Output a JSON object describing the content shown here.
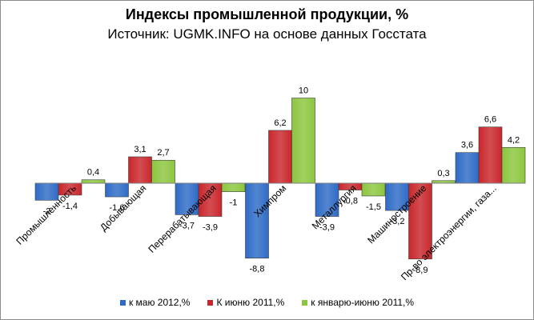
{
  "chart_data": {
    "type": "bar",
    "title": "Индексы промышленной продукции, %",
    "subtitle": "Источник: UGMK.INFO на основе данных Госстата",
    "categories": [
      "Промышленность",
      "Добывающая",
      "Перерабатывающая",
      "Химпром",
      "Металлургия",
      "Машиностроение",
      "Пр-во электроэнергии, газа..."
    ],
    "series": [
      {
        "name": "к маю 2012,%",
        "color": "#2e6bc6",
        "values": [
          -2,
          -1.6,
          -3.7,
          -8.8,
          -3.9,
          -3.2,
          3.6
        ],
        "labels": [
          "-2",
          "-1,6",
          "-3,7",
          "-8,8",
          "-3,9",
          "-3,2",
          "3,6"
        ]
      },
      {
        "name": "К июню 2011,%",
        "color": "#c9262b",
        "values": [
          -1.4,
          3.1,
          -3.9,
          6.2,
          -0.8,
          -8.9,
          6.6
        ],
        "labels": [
          "-1,4",
          "3,1",
          "-3,9",
          "6,2",
          "-0,8",
          "-8,9",
          "6,6"
        ]
      },
      {
        "name": "к январю-июню 2011,%",
        "color": "#8cc63e",
        "values": [
          0.4,
          2.7,
          -1,
          10,
          -1.5,
          0.3,
          4.2
        ],
        "labels": [
          "0,4",
          "2,7",
          "-1",
          "10",
          "-1,5",
          "0,3",
          "4,2"
        ]
      }
    ],
    "ylim": [
      -10,
      10
    ],
    "grid": false,
    "legend": "bottom"
  }
}
